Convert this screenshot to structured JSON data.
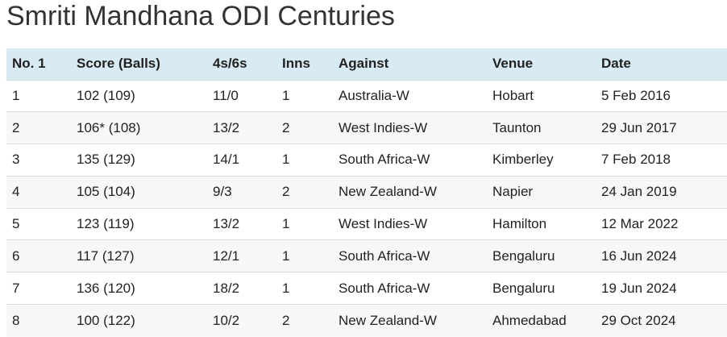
{
  "title": "Smriti Mandhana ODI Centuries",
  "table": {
    "header": [
      "No. 1",
      "Score (Balls)",
      "4s/6s",
      "Inns",
      "Against",
      "Venue",
      "Date"
    ],
    "rows": [
      [
        "1",
        "102 (109)",
        "11/0",
        "1",
        "Australia-W",
        "Hobart",
        "5 Feb 2016"
      ],
      [
        "2",
        "106* (108)",
        "13/2",
        "2",
        "West Indies-W",
        "Taunton",
        "29 Jun 2017"
      ],
      [
        "3",
        "135 (129)",
        "14/1",
        "1",
        "South Africa-W",
        "Kimberley",
        "7 Feb 2018"
      ],
      [
        "4",
        "105 (104)",
        "9/3",
        "2",
        "New Zealand-W",
        "Napier",
        "24 Jan 2019"
      ],
      [
        "5",
        "123 (119)",
        "13/2",
        "1",
        "West Indies-W",
        "Hamilton",
        "12 Mar 2022"
      ],
      [
        "6",
        "117 (127)",
        "12/1",
        "1",
        "South Africa-W",
        "Bengaluru",
        "16 Jun 2024"
      ],
      [
        "7",
        "136 (120)",
        "18/2",
        "1",
        "South Africa-W",
        "Bengaluru",
        "19 Jun 2024"
      ],
      [
        "8",
        "100 (122)",
        "10/2",
        "2",
        "New Zealand-W",
        "Ahmedabad",
        "29 Oct 2024"
      ]
    ]
  }
}
